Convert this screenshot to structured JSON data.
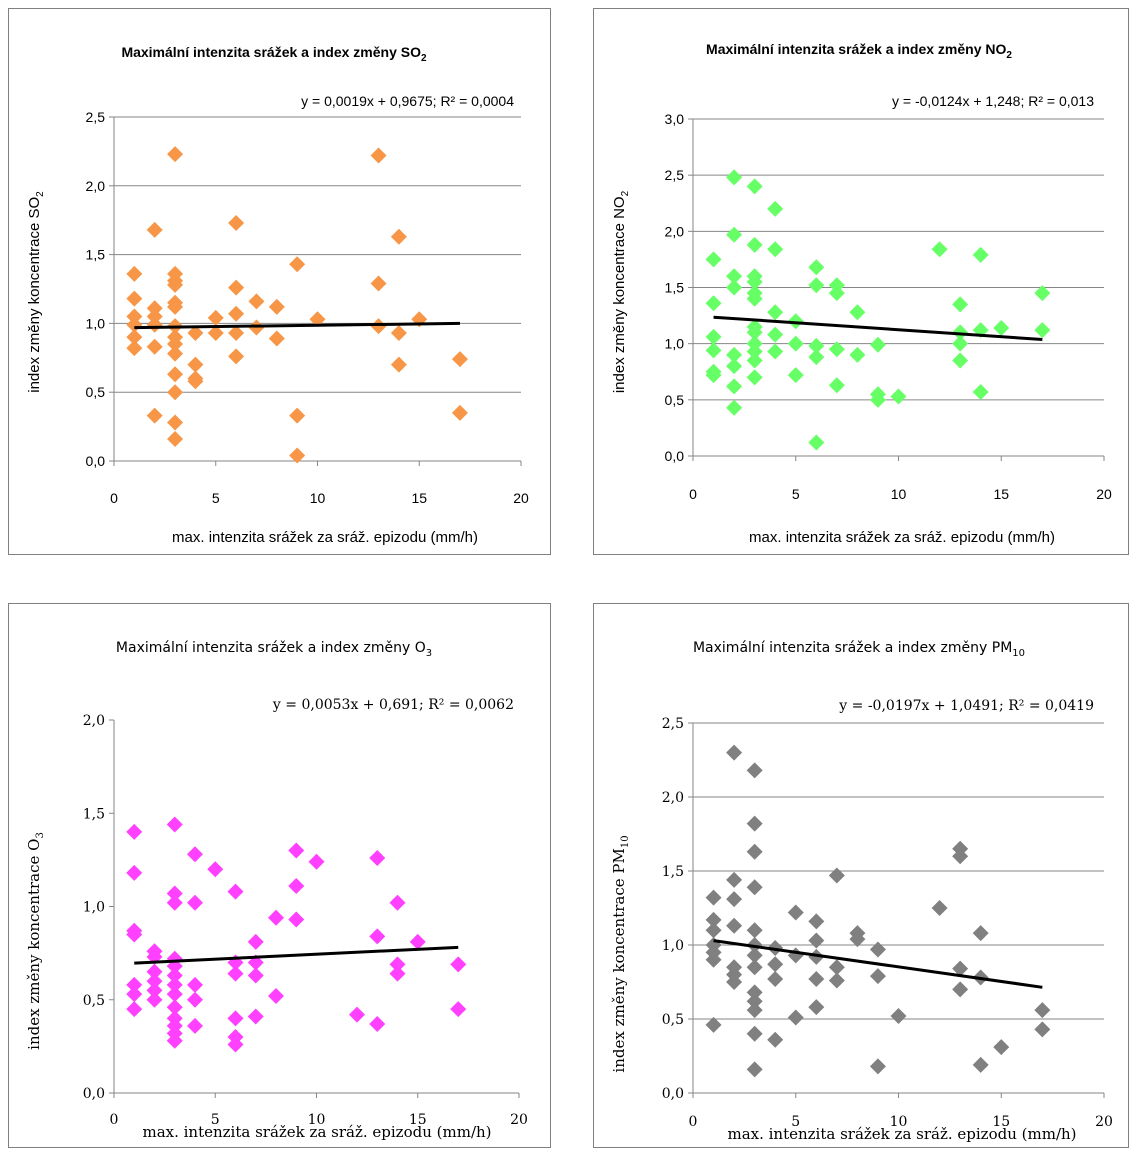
{
  "chart_data": [
    {
      "type": "scatter",
      "title": "Maximální intenzita srážek a index změny SO",
      "title_sub": "2",
      "trendline_label": "y = 0,0019x + 0,9675; R² = 0,0004",
      "trendline": {
        "slope": 0.0019,
        "intercept": 0.9675
      },
      "xlabel": "max. intenzita srážek za sráž. epizodu (mm/h)",
      "ylabel": "index změny koncentrace SO",
      "ylabel_sub": "2",
      "xlim": [
        0,
        20
      ],
      "ylim": [
        0,
        2.5
      ],
      "x_ticks": [
        "0",
        "5",
        "10",
        "15",
        "20"
      ],
      "y_ticks": [
        "0,0",
        "0,5",
        "1,0",
        "1,5",
        "2,0",
        "2,5"
      ],
      "marker_color": "#F79646",
      "grid": true,
      "points": [
        [
          1,
          1.36
        ],
        [
          1,
          1.18
        ],
        [
          1,
          1.05
        ],
        [
          1,
          0.99
        ],
        [
          1,
          0.9
        ],
        [
          1,
          0.82
        ],
        [
          2,
          1.68
        ],
        [
          2,
          1.11
        ],
        [
          2,
          1.05
        ],
        [
          2,
          0.99
        ],
        [
          2,
          0.83
        ],
        [
          2,
          0.33
        ],
        [
          3,
          2.23
        ],
        [
          3,
          1.36
        ],
        [
          3,
          1.31
        ],
        [
          3,
          1.28
        ],
        [
          3,
          1.15
        ],
        [
          3,
          1.12
        ],
        [
          3,
          0.98
        ],
        [
          3,
          0.9
        ],
        [
          3,
          0.85
        ],
        [
          3,
          0.78
        ],
        [
          3,
          0.63
        ],
        [
          3,
          0.5
        ],
        [
          3,
          0.28
        ],
        [
          3,
          0.16
        ],
        [
          4,
          0.93
        ],
        [
          4,
          0.7
        ],
        [
          4,
          0.6
        ],
        [
          4,
          0.58
        ],
        [
          5,
          1.04
        ],
        [
          5,
          0.93
        ],
        [
          6,
          1.73
        ],
        [
          6,
          1.26
        ],
        [
          6,
          1.07
        ],
        [
          6,
          0.93
        ],
        [
          6,
          0.76
        ],
        [
          7,
          1.16
        ],
        [
          7,
          0.97
        ],
        [
          8,
          1.12
        ],
        [
          8,
          0.89
        ],
        [
          9,
          1.43
        ],
        [
          9,
          0.33
        ],
        [
          9,
          0.04
        ],
        [
          10,
          1.03
        ],
        [
          13,
          2.22
        ],
        [
          13,
          1.29
        ],
        [
          13,
          0.98
        ],
        [
          14,
          1.63
        ],
        [
          14,
          0.93
        ],
        [
          14,
          0.7
        ],
        [
          15,
          1.03
        ],
        [
          17,
          0.74
        ],
        [
          17,
          0.35
        ]
      ]
    },
    {
      "type": "scatter",
      "title": "Maximální intenzita srážek a index změny NO",
      "title_sub": "2",
      "trendline_label": "y = -0,0124x + 1,248; R² = 0,013",
      "trendline": {
        "slope": -0.0124,
        "intercept": 1.248
      },
      "xlabel": "max. intenzita srážek za sráž. epizodu (mm/h)",
      "ylabel": "index změny koncentrace NO",
      "ylabel_sub": "2",
      "xlim": [
        0,
        20
      ],
      "ylim": [
        0,
        3.0
      ],
      "x_ticks": [
        "0",
        "5",
        "10",
        "15",
        "20"
      ],
      "y_ticks": [
        "0,0",
        "0,5",
        "1,0",
        "1,5",
        "2,0",
        "2,5",
        "3,0"
      ],
      "marker_color": "#66FF66",
      "grid": true,
      "points": [
        [
          1,
          1.75
        ],
        [
          1,
          1.36
        ],
        [
          1,
          1.06
        ],
        [
          1,
          0.94
        ],
        [
          1,
          0.75
        ],
        [
          1,
          0.72
        ],
        [
          2,
          2.48
        ],
        [
          2,
          1.97
        ],
        [
          2,
          1.6
        ],
        [
          2,
          1.5
        ],
        [
          2,
          0.9
        ],
        [
          2,
          0.8
        ],
        [
          2,
          0.62
        ],
        [
          2,
          0.43
        ],
        [
          3,
          2.4
        ],
        [
          3,
          1.88
        ],
        [
          3,
          1.6
        ],
        [
          3,
          1.55
        ],
        [
          3,
          1.45
        ],
        [
          3,
          1.4
        ],
        [
          3,
          1.15
        ],
        [
          3,
          1.1
        ],
        [
          3,
          1.0
        ],
        [
          3,
          0.93
        ],
        [
          3,
          0.85
        ],
        [
          3,
          0.7
        ],
        [
          4,
          2.2
        ],
        [
          4,
          1.84
        ],
        [
          4,
          1.28
        ],
        [
          4,
          1.08
        ],
        [
          4,
          0.93
        ],
        [
          5,
          1.2
        ],
        [
          5,
          1.0
        ],
        [
          5,
          0.72
        ],
        [
          6,
          1.68
        ],
        [
          6,
          1.52
        ],
        [
          6,
          0.98
        ],
        [
          6,
          0.88
        ],
        [
          6,
          0.12
        ],
        [
          7,
          1.52
        ],
        [
          7,
          1.45
        ],
        [
          7,
          0.95
        ],
        [
          7,
          0.63
        ],
        [
          8,
          1.28
        ],
        [
          8,
          0.9
        ],
        [
          9,
          0.99
        ],
        [
          9,
          0.55
        ],
        [
          9,
          0.5
        ],
        [
          10,
          0.53
        ],
        [
          12,
          1.84
        ],
        [
          13,
          1.35
        ],
        [
          13,
          1.1
        ],
        [
          13,
          1.0
        ],
        [
          13,
          0.85
        ],
        [
          14,
          1.79
        ],
        [
          14,
          1.12
        ],
        [
          14,
          0.57
        ],
        [
          15,
          1.14
        ],
        [
          17,
          1.45
        ],
        [
          17,
          1.12
        ]
      ]
    },
    {
      "type": "scatter",
      "title": "Maximální intenzita srážek a index změny O",
      "title_sub": "3",
      "trendline_label": "y = 0,0053x + 0,691; R² = 0,0062",
      "trendline": {
        "slope": 0.0053,
        "intercept": 0.691
      },
      "xlabel": "max. intenzita srážek za sráž. epizodu (mm/h)",
      "ylabel": "index změny koncentrace O",
      "ylabel_sub": "3",
      "xlim": [
        0,
        20
      ],
      "ylim": [
        0,
        2.0
      ],
      "x_ticks": [
        "0",
        "5",
        "10",
        "15",
        "20"
      ],
      "y_ticks": [
        "0,0",
        "0,5",
        "1,0",
        "1,5",
        "2,0"
      ],
      "marker_color": "#FF40FF",
      "grid": false,
      "points": [
        [
          1,
          1.4
        ],
        [
          1,
          1.18
        ],
        [
          1,
          0.87
        ],
        [
          1,
          0.85
        ],
        [
          1,
          0.58
        ],
        [
          1,
          0.53
        ],
        [
          1,
          0.45
        ],
        [
          2,
          0.76
        ],
        [
          2,
          0.73
        ],
        [
          2,
          0.65
        ],
        [
          2,
          0.6
        ],
        [
          2,
          0.55
        ],
        [
          2,
          0.5
        ],
        [
          3,
          1.44
        ],
        [
          3,
          1.07
        ],
        [
          3,
          1.02
        ],
        [
          3,
          0.72
        ],
        [
          3,
          0.68
        ],
        [
          3,
          0.63
        ],
        [
          3,
          0.58
        ],
        [
          3,
          0.53
        ],
        [
          3,
          0.46
        ],
        [
          3,
          0.4
        ],
        [
          3,
          0.36
        ],
        [
          3,
          0.32
        ],
        [
          3,
          0.28
        ],
        [
          4,
          1.28
        ],
        [
          4,
          1.02
        ],
        [
          4,
          0.58
        ],
        [
          4,
          0.5
        ],
        [
          4,
          0.36
        ],
        [
          5,
          1.2
        ],
        [
          6,
          1.08
        ],
        [
          6,
          0.7
        ],
        [
          6,
          0.64
        ],
        [
          6,
          0.4
        ],
        [
          6,
          0.3
        ],
        [
          6,
          0.26
        ],
        [
          7,
          0.81
        ],
        [
          7,
          0.7
        ],
        [
          7,
          0.63
        ],
        [
          7,
          0.41
        ],
        [
          8,
          0.94
        ],
        [
          8,
          0.52
        ],
        [
          9,
          1.3
        ],
        [
          9,
          1.11
        ],
        [
          9,
          0.93
        ],
        [
          10,
          1.24
        ],
        [
          12,
          0.42
        ],
        [
          13,
          1.26
        ],
        [
          13,
          0.84
        ],
        [
          13,
          0.37
        ],
        [
          14,
          1.02
        ],
        [
          14,
          0.69
        ],
        [
          14,
          0.64
        ],
        [
          15,
          0.81
        ],
        [
          17,
          0.69
        ],
        [
          17,
          0.45
        ]
      ]
    },
    {
      "type": "scatter",
      "title": "Maximální intenzita srážek a index změny PM",
      "title_sub": "10",
      "trendline_label": "y = -0,0197x + 1,0491; R² = 0,0419",
      "trendline": {
        "slope": -0.0197,
        "intercept": 1.0491
      },
      "xlabel": "max. intenzita srážek za sráž. epizodu (mm/h)",
      "ylabel": "index změny koncentrace PM",
      "ylabel_sub": "10",
      "xlim": [
        0,
        20
      ],
      "ylim": [
        0,
        2.5
      ],
      "x_ticks": [
        "0",
        "5",
        "10",
        "15",
        "20"
      ],
      "y_ticks": [
        "0,0",
        "0,5",
        "1,0",
        "1,5",
        "2,0",
        "2,5"
      ],
      "marker_color": "#808080",
      "grid": true,
      "points": [
        [
          1,
          1.32
        ],
        [
          1,
          1.17
        ],
        [
          1,
          1.1
        ],
        [
          1,
          1.0
        ],
        [
          1,
          0.95
        ],
        [
          1,
          0.9
        ],
        [
          1,
          0.46
        ],
        [
          2,
          2.3
        ],
        [
          2,
          1.44
        ],
        [
          2,
          1.31
        ],
        [
          2,
          1.13
        ],
        [
          2,
          0.85
        ],
        [
          2,
          0.8
        ],
        [
          2,
          0.75
        ],
        [
          3,
          2.18
        ],
        [
          3,
          1.82
        ],
        [
          3,
          1.63
        ],
        [
          3,
          1.39
        ],
        [
          3,
          1.1
        ],
        [
          3,
          1.0
        ],
        [
          3,
          0.93
        ],
        [
          3,
          0.85
        ],
        [
          3,
          0.68
        ],
        [
          3,
          0.62
        ],
        [
          3,
          0.56
        ],
        [
          3,
          0.4
        ],
        [
          3,
          0.16
        ],
        [
          4,
          0.98
        ],
        [
          4,
          0.87
        ],
        [
          4,
          0.77
        ],
        [
          4,
          0.36
        ],
        [
          5,
          1.22
        ],
        [
          5,
          0.93
        ],
        [
          5,
          0.51
        ],
        [
          6,
          1.16
        ],
        [
          6,
          1.03
        ],
        [
          6,
          0.92
        ],
        [
          6,
          0.77
        ],
        [
          6,
          0.58
        ],
        [
          7,
          1.47
        ],
        [
          7,
          0.85
        ],
        [
          7,
          0.76
        ],
        [
          8,
          1.08
        ],
        [
          8,
          1.04
        ],
        [
          9,
          0.97
        ],
        [
          9,
          0.79
        ],
        [
          9,
          0.18
        ],
        [
          10,
          0.52
        ],
        [
          12,
          1.25
        ],
        [
          13,
          1.65
        ],
        [
          13,
          1.6
        ],
        [
          13,
          0.84
        ],
        [
          13,
          0.7
        ],
        [
          14,
          1.08
        ],
        [
          14,
          0.78
        ],
        [
          14,
          0.19
        ],
        [
          15,
          0.31
        ],
        [
          17,
          0.56
        ],
        [
          17,
          0.43
        ]
      ]
    }
  ]
}
